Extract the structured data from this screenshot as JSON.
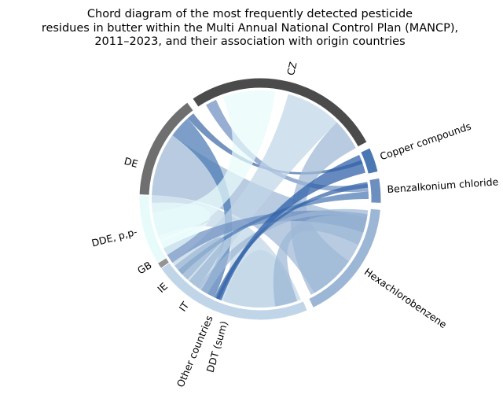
{
  "title_lines": [
    "Chord diagram of the most frequently detected pesticide",
    "residues in butter within the Multi Annual National Control Plan (MANCP),",
    "2011–2023, and their association with origin countries"
  ],
  "chart_data": {
    "type": "chord",
    "nodes": [
      {
        "id": "CZ",
        "label": "CZ",
        "group": "country",
        "color": "#4b4b4b",
        "start": 326,
        "end": 62
      },
      {
        "id": "DE",
        "label": "DE",
        "group": "country",
        "color": "#6f6f6f",
        "start": 248,
        "end": 323
      },
      {
        "id": "GB",
        "label": "GB",
        "group": "country",
        "color": "#939393",
        "start": 233,
        "end": 245
      },
      {
        "id": "IE",
        "label": "IE",
        "group": "country",
        "color": "#b2b2b2",
        "start": 225,
        "end": 230
      },
      {
        "id": "IT",
        "label": "IT",
        "group": "country",
        "color": "#d6d6d6",
        "start": 208,
        "end": 222
      },
      {
        "id": "Other countries",
        "label": "Other countries",
        "group": "country",
        "color": "#3464a8",
        "start": 201,
        "end": 205
      },
      {
        "id": "Copper compounds",
        "label": "Copper compounds",
        "group": "pesticide",
        "color": "#4a78b3",
        "start": 65,
        "end": 77
      },
      {
        "id": "Benzalkonium chloride",
        "label": "Benzalkonium chloride",
        "group": "pesticide",
        "color": "#6d8fc0",
        "start": 80,
        "end": 92
      },
      {
        "id": "Hexachlorobenzene",
        "label": "Hexachlorobenzene",
        "group": "pesticide",
        "color": "#9cb7d6",
        "start": 95,
        "end": 154
      },
      {
        "id": "DDT (sum)",
        "label": "DDT (sum)",
        "group": "pesticide",
        "color": "#c0d5e7",
        "start": 157,
        "end": 235
      },
      {
        "id": "DDE, p,p-",
        "label": "DDE, p,p-",
        "group": "pesticide",
        "color": "#e7fbfb",
        "start": 238,
        "end": 272
      }
    ],
    "links": [
      {
        "source": "DE",
        "s0": 250,
        "s1": 272,
        "target": "DDT (sum)",
        "t0": 158,
        "t1": 202,
        "color": "#c0d5e7"
      },
      {
        "source": "DE",
        "s0": 272,
        "s1": 306,
        "target": "Hexachlorobenzene",
        "t0": 100,
        "t1": 150,
        "color": "#9cb7d6"
      },
      {
        "source": "DE",
        "s0": 306,
        "s1": 318,
        "target": "DDT (sum)",
        "t0": 205,
        "t1": 213,
        "color": "#4a78b3"
      },
      {
        "source": "DE",
        "s0": 318,
        "s1": 322,
        "target": "Copper compounds",
        "t0": 69,
        "t1": 71,
        "color": "#3f6aa6"
      },
      {
        "source": "CZ",
        "s0": 330,
        "s1": 336,
        "target": "Benzalkonium chloride",
        "t0": 82,
        "t1": 86,
        "color": "#6d8fc0"
      },
      {
        "source": "CZ",
        "s0": 340,
        "s1": 8,
        "target": "DDE, p,p-",
        "t0": 243,
        "t1": 263,
        "color": "#e7fbfb"
      },
      {
        "source": "CZ",
        "s0": 15,
        "s1": 45,
        "target": "DDT (sum)",
        "t0": 214,
        "t1": 234,
        "color": "#c0d5e7"
      },
      {
        "source": "CZ",
        "s0": 45,
        "s1": 62,
        "target": "Hexachlorobenzene",
        "t0": 125,
        "t1": 152,
        "color": "#9cb7d6"
      },
      {
        "source": "GB",
        "s0": 234,
        "s1": 243,
        "target": "Hexachlorobenzene",
        "t0": 98,
        "t1": 108,
        "color": "#6d8fc0"
      },
      {
        "source": "IE",
        "s0": 226,
        "s1": 229,
        "target": "Benzalkonium chloride",
        "t0": 86,
        "t1": 90,
        "color": "#4a78b3"
      },
      {
        "source": "IT",
        "s0": 209,
        "s1": 215,
        "target": "Hexachlorobenzene",
        "t0": 96,
        "t1": 100,
        "color": "#9cb7d6"
      },
      {
        "source": "IT",
        "s0": 215,
        "s1": 221,
        "target": "DDT (sum)",
        "t0": 222,
        "t1": 232,
        "color": "#9cb7d6"
      },
      {
        "source": "Other countries",
        "s0": 201,
        "s1": 204,
        "target": "Copper compounds",
        "t0": 66,
        "t1": 76,
        "color": "#2b5da6"
      },
      {
        "source": "Other countries",
        "s0": 202,
        "s1": 205,
        "target": "Benzalkonium chloride",
        "t0": 81,
        "t1": 84,
        "color": "#3464a8"
      },
      {
        "source": "DDT (sum)",
        "s0": 160,
        "s1": 185,
        "target": "DDT (sum)",
        "t0": 185,
        "t1": 200,
        "color": "#c0d5e7"
      },
      {
        "source": "DDE, p,p-",
        "s0": 248,
        "s1": 268,
        "target": "DDE, p,p-",
        "t0": 239,
        "t1": 246,
        "color": "#e7fbfb"
      },
      {
        "source": "Hexachlorobenzene",
        "s0": 100,
        "s1": 115,
        "target": "DDT (sum)",
        "t0": 160,
        "t1": 172,
        "color": "#9cb7d6"
      }
    ]
  }
}
